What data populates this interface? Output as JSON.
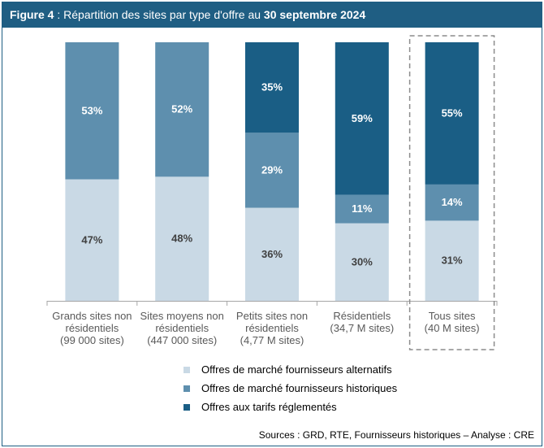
{
  "header": {
    "figure_label": "Figure 4",
    "title_middle": " : Répartition des sites par type d'offre au ",
    "title_bold_end": "30 septembre 2024"
  },
  "chart_data": {
    "type": "bar",
    "stacked": true,
    "percent": true,
    "ylim": [
      0,
      100
    ],
    "categories": [
      [
        "Grands sites non",
        "résidentiels",
        "(99 000 sites)"
      ],
      [
        "Sites moyens non",
        "résidentiels",
        "(447 000 sites)"
      ],
      [
        "Petits sites non",
        "résidentiels",
        "(4,77 M sites)"
      ],
      [
        "Résidentiels",
        "(34,7 M sites)"
      ],
      [
        "Tous sites",
        "(40 M sites)"
      ]
    ],
    "series": [
      {
        "name": "Offres de marché fournisseurs alternatifs",
        "color": "#c9d9e5",
        "label_color": "#404040",
        "values": [
          47,
          48,
          36,
          30,
          31
        ],
        "labels": [
          "47%",
          "48%",
          "36%",
          "30%",
          "31%"
        ]
      },
      {
        "name": "Offres de marché fournisseurs historiques",
        "color": "#5e8fae",
        "label_color": "#ffffff",
        "values": [
          53,
          52,
          29,
          11,
          14
        ],
        "labels": [
          "53%",
          "52%",
          "29%",
          "11%",
          "14%"
        ]
      },
      {
        "name": "Offres aux tarifs réglementés",
        "color": "#1a5e85",
        "label_color": "#ffffff",
        "values": [
          0,
          0,
          35,
          59,
          55
        ],
        "labels": [
          "",
          "",
          "35%",
          "59%",
          "55%"
        ]
      }
    ],
    "highlighted_category_index": 4,
    "grid": false,
    "legend_position": "bottom"
  },
  "source": "Sources : GRD, RTE, Fournisseurs historiques – Analyse : CRE"
}
